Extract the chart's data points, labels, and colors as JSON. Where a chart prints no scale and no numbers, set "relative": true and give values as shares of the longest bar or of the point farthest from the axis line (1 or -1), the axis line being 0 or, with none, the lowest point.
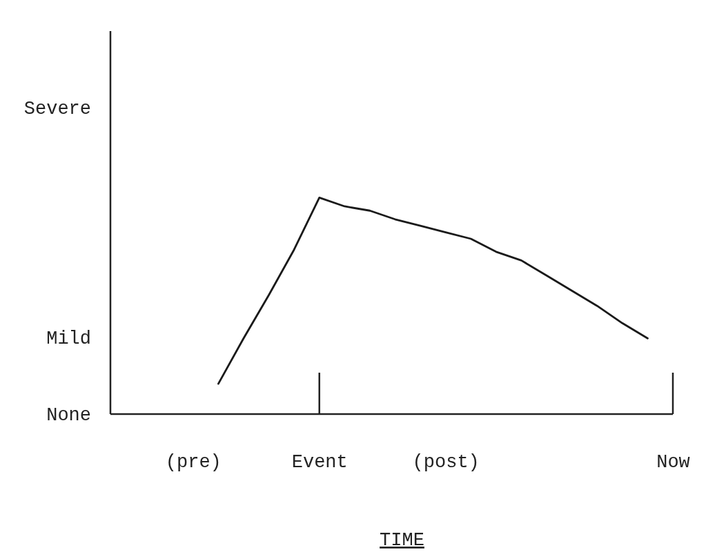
{
  "chart_data": {
    "type": "line",
    "xlabel": "TIME",
    "relative": true,
    "categories": [
      null,
      null,
      null,
      "(pre)",
      null,
      null,
      null,
      null,
      "Event",
      null,
      null,
      null,
      null,
      "(post)",
      null,
      null,
      null,
      null,
      null,
      null,
      null,
      null,
      "Now"
    ],
    "values": [
      null,
      null,
      null,
      null,
      0.14,
      0.35,
      0.55,
      0.76,
      1,
      0.96,
      0.94,
      0.9,
      0.87,
      0.84,
      0.81,
      0.75,
      0.71,
      0.64,
      0.57,
      0.5,
      0.42,
      0.35,
      null
    ],
    "color": "#1a1a1a",
    "ref_lines": [
      {
        "axis": "x",
        "value": "Event"
      },
      {
        "axis": "x",
        "value": "Now"
      }
    ],
    "annotations": [
      "None",
      "Mild",
      "Severe"
    ],
    "marker": "none",
    "line_style": "solid"
  }
}
